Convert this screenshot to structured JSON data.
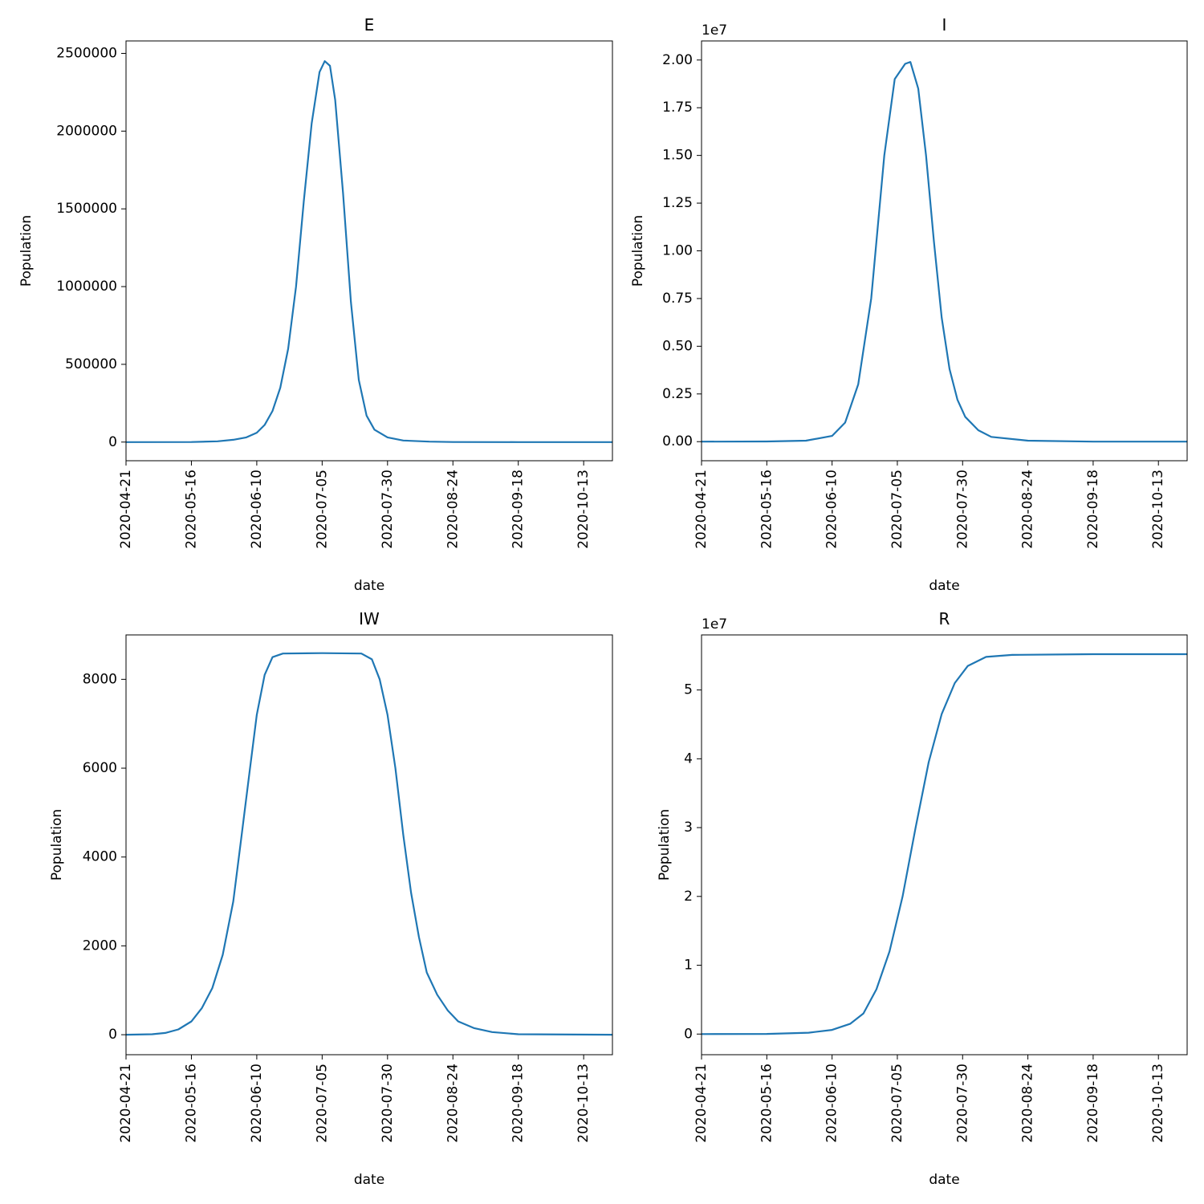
{
  "figure": {
    "line_color": "#1f77b4"
  },
  "chart_data": [
    {
      "type": "line",
      "title": "E",
      "xlabel": "date",
      "ylabel": "Population",
      "offset_text": "",
      "xlim": [
        "2020-04-21",
        "2020-10-24"
      ],
      "ylim": [
        -120000,
        2580000
      ],
      "x_ticks": [
        "2020-04-21",
        "2020-05-16",
        "2020-06-10",
        "2020-07-05",
        "2020-07-30",
        "2020-08-24",
        "2020-09-18",
        "2020-10-13"
      ],
      "y_ticks": [
        {
          "value": 0,
          "label": "0"
        },
        {
          "value": 500000,
          "label": "500000"
        },
        {
          "value": 1000000,
          "label": "1000000"
        },
        {
          "value": 1500000,
          "label": "1500000"
        },
        {
          "value": 2000000,
          "label": "2000000"
        },
        {
          "value": 2500000,
          "label": "2500000"
        }
      ],
      "grid": false,
      "series": [
        {
          "points": [
            [
              "2020-04-21",
              0
            ],
            [
              "2020-05-16",
              500
            ],
            [
              "2020-05-26",
              5000
            ],
            [
              "2020-06-01",
              15000
            ],
            [
              "2020-06-06",
              30000
            ],
            [
              "2020-06-10",
              60000
            ],
            [
              "2020-06-13",
              110000
            ],
            [
              "2020-06-16",
              200000
            ],
            [
              "2020-06-19",
              350000
            ],
            [
              "2020-06-22",
              600000
            ],
            [
              "2020-06-25",
              1000000
            ],
            [
              "2020-06-28",
              1550000
            ],
            [
              "2020-07-01",
              2050000
            ],
            [
              "2020-07-04",
              2380000
            ],
            [
              "2020-07-06",
              2450000
            ],
            [
              "2020-07-08",
              2420000
            ],
            [
              "2020-07-10",
              2200000
            ],
            [
              "2020-07-13",
              1600000
            ],
            [
              "2020-07-16",
              900000
            ],
            [
              "2020-07-19",
              400000
            ],
            [
              "2020-07-22",
              170000
            ],
            [
              "2020-07-25",
              80000
            ],
            [
              "2020-07-30",
              30000
            ],
            [
              "2020-08-05",
              10000
            ],
            [
              "2020-08-15",
              3000
            ],
            [
              "2020-08-24",
              500
            ],
            [
              "2020-09-18",
              0
            ],
            [
              "2020-10-24",
              0
            ]
          ]
        }
      ]
    },
    {
      "type": "line",
      "title": "I",
      "xlabel": "date",
      "ylabel": "Population",
      "offset_text": "1e7",
      "xlim": [
        "2020-04-21",
        "2020-10-24"
      ],
      "ylim": [
        -0.1,
        2.1
      ],
      "x_ticks": [
        "2020-04-21",
        "2020-05-16",
        "2020-06-10",
        "2020-07-05",
        "2020-07-30",
        "2020-08-24",
        "2020-09-18",
        "2020-10-13"
      ],
      "y_ticks": [
        {
          "value": 0,
          "label": "0.00"
        },
        {
          "value": 0.25,
          "label": "0.25"
        },
        {
          "value": 0.5,
          "label": "0.50"
        },
        {
          "value": 0.75,
          "label": "0.75"
        },
        {
          "value": 1.0,
          "label": "1.00"
        },
        {
          "value": 1.25,
          "label": "1.25"
        },
        {
          "value": 1.5,
          "label": "1.50"
        },
        {
          "value": 1.75,
          "label": "1.75"
        },
        {
          "value": 2.0,
          "label": "2.00"
        }
      ],
      "grid": false,
      "series": [
        {
          "points": [
            [
              "2020-04-21",
              0
            ],
            [
              "2020-05-16",
              0.001
            ],
            [
              "2020-05-31",
              0.005
            ],
            [
              "2020-06-10",
              0.03
            ],
            [
              "2020-06-15",
              0.1
            ],
            [
              "2020-06-20",
              0.3
            ],
            [
              "2020-06-25",
              0.75
            ],
            [
              "2020-06-30",
              1.5
            ],
            [
              "2020-07-04",
              1.9
            ],
            [
              "2020-07-08",
              1.98
            ],
            [
              "2020-07-10",
              1.99
            ],
            [
              "2020-07-13",
              1.85
            ],
            [
              "2020-07-16",
              1.5
            ],
            [
              "2020-07-19",
              1.05
            ],
            [
              "2020-07-22",
              0.65
            ],
            [
              "2020-07-25",
              0.38
            ],
            [
              "2020-07-28",
              0.22
            ],
            [
              "2020-07-31",
              0.13
            ],
            [
              "2020-08-05",
              0.06
            ],
            [
              "2020-08-10",
              0.025
            ],
            [
              "2020-08-24",
              0.005
            ],
            [
              "2020-09-18",
              0
            ],
            [
              "2020-10-24",
              0
            ]
          ]
        }
      ]
    },
    {
      "type": "line",
      "title": "IW",
      "xlabel": "date",
      "ylabel": "Population",
      "offset_text": "",
      "xlim": [
        "2020-04-21",
        "2020-10-24"
      ],
      "ylim": [
        -450,
        9000
      ],
      "x_ticks": [
        "2020-04-21",
        "2020-05-16",
        "2020-06-10",
        "2020-07-05",
        "2020-07-30",
        "2020-08-24",
        "2020-09-18",
        "2020-10-13"
      ],
      "y_ticks": [
        {
          "value": 0,
          "label": "0"
        },
        {
          "value": 2000,
          "label": "2000"
        },
        {
          "value": 4000,
          "label": "4000"
        },
        {
          "value": 6000,
          "label": "6000"
        },
        {
          "value": 8000,
          "label": "8000"
        }
      ],
      "grid": false,
      "series": [
        {
          "points": [
            [
              "2020-04-21",
              0
            ],
            [
              "2020-05-01",
              10
            ],
            [
              "2020-05-06",
              40
            ],
            [
              "2020-05-11",
              120
            ],
            [
              "2020-05-16",
              300
            ],
            [
              "2020-05-20",
              600
            ],
            [
              "2020-05-24",
              1050
            ],
            [
              "2020-05-28",
              1800
            ],
            [
              "2020-06-01",
              3000
            ],
            [
              "2020-06-04",
              4400
            ],
            [
              "2020-06-07",
              5800
            ],
            [
              "2020-06-10",
              7200
            ],
            [
              "2020-06-13",
              8100
            ],
            [
              "2020-06-16",
              8500
            ],
            [
              "2020-06-20",
              8580
            ],
            [
              "2020-07-05",
              8590
            ],
            [
              "2020-07-20",
              8580
            ],
            [
              "2020-07-24",
              8450
            ],
            [
              "2020-07-27",
              8000
            ],
            [
              "2020-07-30",
              7200
            ],
            [
              "2020-08-02",
              6000
            ],
            [
              "2020-08-05",
              4500
            ],
            [
              "2020-08-08",
              3200
            ],
            [
              "2020-08-11",
              2200
            ],
            [
              "2020-08-14",
              1400
            ],
            [
              "2020-08-18",
              900
            ],
            [
              "2020-08-22",
              550
            ],
            [
              "2020-08-26",
              300
            ],
            [
              "2020-09-01",
              150
            ],
            [
              "2020-09-08",
              60
            ],
            [
              "2020-09-18",
              10
            ],
            [
              "2020-10-24",
              0
            ]
          ]
        }
      ]
    },
    {
      "type": "line",
      "title": "R",
      "xlabel": "date",
      "ylabel": "Population",
      "offset_text": "1e7",
      "xlim": [
        "2020-04-21",
        "2020-10-24"
      ],
      "ylim": [
        -0.3,
        5.8
      ],
      "x_ticks": [
        "2020-04-21",
        "2020-05-16",
        "2020-06-10",
        "2020-07-05",
        "2020-07-30",
        "2020-08-24",
        "2020-09-18",
        "2020-10-13"
      ],
      "y_ticks": [
        {
          "value": 0,
          "label": "0"
        },
        {
          "value": 1,
          "label": "1"
        },
        {
          "value": 2,
          "label": "2"
        },
        {
          "value": 3,
          "label": "3"
        },
        {
          "value": 4,
          "label": "4"
        },
        {
          "value": 5,
          "label": "5"
        }
      ],
      "grid": false,
      "series": [
        {
          "points": [
            [
              "2020-04-21",
              0
            ],
            [
              "2020-05-16",
              0.002
            ],
            [
              "2020-06-01",
              0.02
            ],
            [
              "2020-06-10",
              0.06
            ],
            [
              "2020-06-17",
              0.15
            ],
            [
              "2020-06-22",
              0.3
            ],
            [
              "2020-06-27",
              0.65
            ],
            [
              "2020-07-02",
              1.2
            ],
            [
              "2020-07-07",
              2.0
            ],
            [
              "2020-07-12",
              3.0
            ],
            [
              "2020-07-17",
              3.95
            ],
            [
              "2020-07-22",
              4.65
            ],
            [
              "2020-07-27",
              5.1
            ],
            [
              "2020-08-01",
              5.35
            ],
            [
              "2020-08-08",
              5.48
            ],
            [
              "2020-08-18",
              5.51
            ],
            [
              "2020-09-18",
              5.52
            ],
            [
              "2020-10-24",
              5.52
            ]
          ]
        }
      ]
    }
  ]
}
